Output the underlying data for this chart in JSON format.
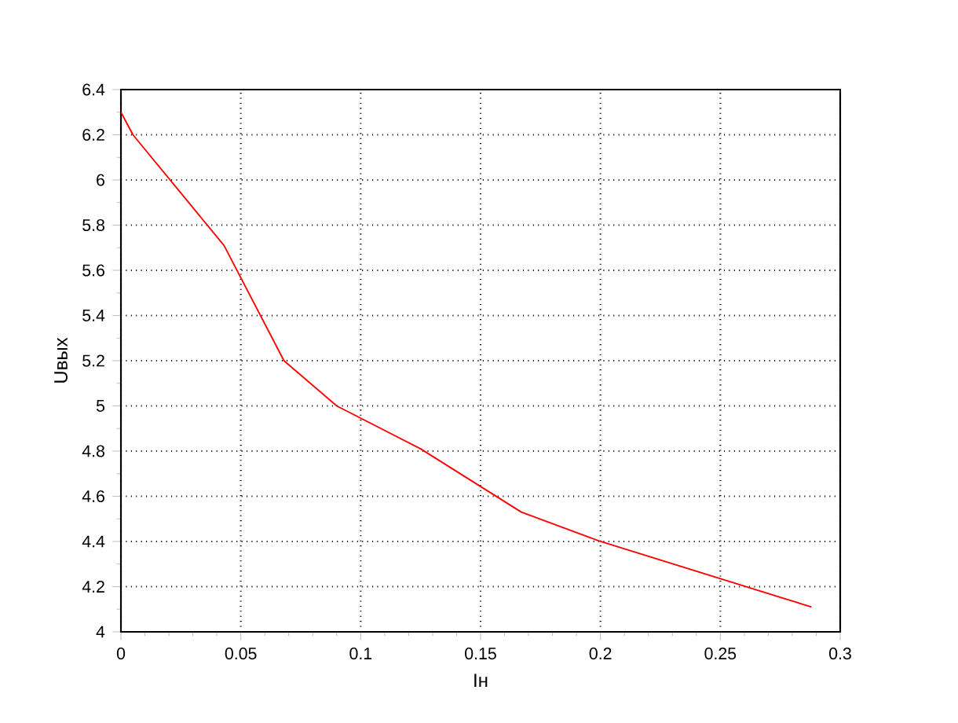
{
  "chart_data": {
    "type": "line",
    "xlabel": "Iн",
    "ylabel": "Uвых",
    "x": [
      0,
      0.005,
      0.043,
      0.068,
      0.09,
      0.125,
      0.167,
      0.2,
      0.288
    ],
    "series": [
      {
        "color": "#ff0000",
        "values": [
          6.3,
          6.2,
          5.71,
          5.2,
          5.0,
          4.81,
          4.53,
          4.4,
          4.11
        ]
      }
    ],
    "xlim": [
      0,
      0.3
    ],
    "ylim": [
      4,
      6.4
    ],
    "xticks": [
      0,
      0.05,
      0.1,
      0.15,
      0.2,
      0.25,
      0.3
    ],
    "yticks": [
      4,
      4.2,
      4.4,
      4.6,
      4.8,
      5,
      5.2,
      5.4,
      5.6,
      5.8,
      6,
      6.2,
      6.4
    ],
    "grid": true,
    "marker": "none",
    "line_style": "solid"
  }
}
